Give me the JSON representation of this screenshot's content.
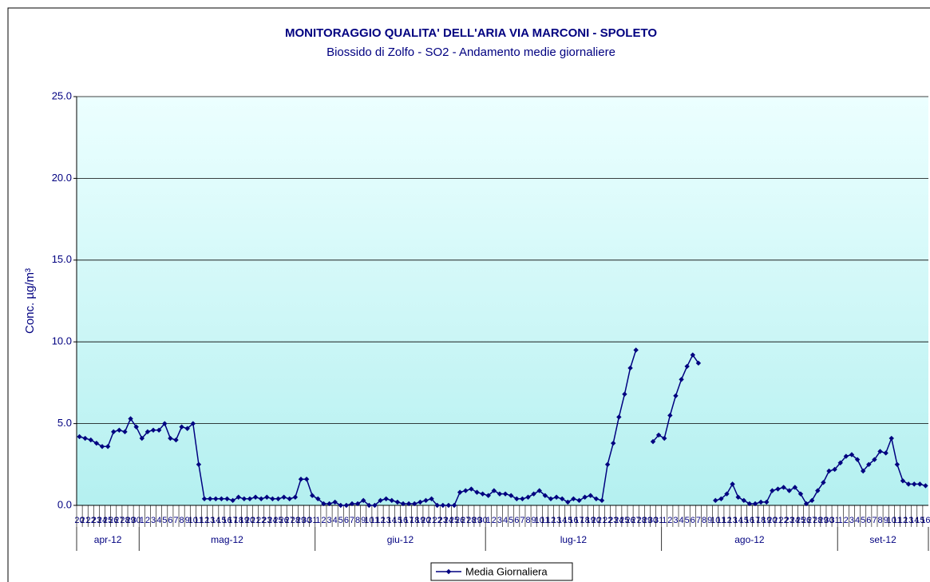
{
  "chart_data": {
    "type": "line",
    "title": "MONITORAGGIO QUALITA' DELL'ARIA  VIA MARCONI - SPOLETO",
    "subtitle": "Biossido di Zolfo - SO2 - Andamento medie giornaliere",
    "y_label": "Conc. µg/m³",
    "categories": [
      20,
      21,
      22,
      23,
      24,
      25,
      26,
      27,
      28,
      29,
      30,
      1,
      2,
      3,
      4,
      5,
      6,
      7,
      8,
      9,
      10,
      11,
      12,
      13,
      14,
      15,
      16,
      17,
      18,
      19,
      20,
      21,
      22,
      23,
      24,
      25,
      26,
      27,
      28,
      29,
      30,
      31,
      1,
      2,
      3,
      4,
      5,
      6,
      7,
      8,
      9,
      10,
      11,
      12,
      13,
      14,
      15,
      16,
      17,
      18,
      19,
      20,
      21,
      22,
      23,
      24,
      25,
      26,
      27,
      28,
      29,
      30,
      1,
      2,
      3,
      4,
      5,
      6,
      7,
      8,
      9,
      10,
      11,
      12,
      13,
      14,
      15,
      16,
      17,
      18,
      19,
      20,
      21,
      22,
      23,
      24,
      25,
      26,
      27,
      28,
      29,
      30,
      31,
      1,
      2,
      3,
      4,
      5,
      6,
      7,
      8,
      9,
      10,
      11,
      12,
      13,
      14,
      15,
      16,
      17,
      18,
      19,
      20,
      21,
      22,
      23,
      24,
      25,
      26,
      27,
      28,
      29,
      30,
      31,
      1,
      2,
      3,
      4,
      5,
      6,
      7,
      8,
      9,
      10,
      11,
      12,
      13,
      14,
      15,
      16
    ],
    "x_groups": [
      "apr-12",
      "mag-12",
      "giu-12",
      "lug-12",
      "ago-12",
      "set-12"
    ],
    "series": [
      {
        "name": "Media Giornaliera",
        "color": "#000080",
        "values": [
          4.2,
          4.1,
          4.0,
          3.8,
          3.6,
          3.6,
          4.5,
          4.6,
          4.5,
          5.3,
          4.8,
          4.1,
          4.5,
          4.6,
          4.6,
          5.0,
          4.1,
          4.0,
          4.8,
          4.7,
          5.0,
          2.5,
          0.4,
          0.4,
          0.4,
          0.4,
          0.4,
          0.3,
          0.5,
          0.4,
          0.4,
          0.5,
          0.4,
          0.5,
          0.4,
          0.4,
          0.5,
          0.4,
          0.5,
          1.6,
          1.6,
          0.6,
          0.4,
          0.1,
          0.1,
          0.2,
          0.0,
          0.0,
          0.1,
          0.1,
          0.3,
          0.0,
          0.0,
          0.3,
          0.4,
          0.3,
          0.2,
          0.1,
          0.1,
          0.1,
          0.2,
          0.3,
          0.4,
          0.0,
          0.0,
          0.0,
          0.0,
          0.8,
          0.9,
          1.0,
          0.8,
          0.7,
          0.6,
          0.9,
          0.7,
          0.7,
          0.6,
          0.4,
          0.4,
          0.5,
          0.7,
          0.9,
          0.6,
          0.4,
          0.5,
          0.4,
          0.2,
          0.4,
          0.3,
          0.5,
          0.6,
          0.4,
          0.3,
          2.5,
          3.8,
          5.4,
          6.8,
          8.4,
          9.5,
          null,
          null,
          3.9,
          4.3,
          4.1,
          5.5,
          6.7,
          7.7,
          8.5,
          9.2,
          8.7,
          null,
          null,
          0.3,
          0.4,
          0.7,
          1.3,
          0.5,
          0.3,
          0.1,
          0.1,
          0.2,
          0.2,
          0.9,
          1.0,
          1.1,
          0.9,
          1.1,
          0.7,
          0.1,
          0.3,
          0.9,
          1.4,
          2.1,
          2.2,
          2.6,
          3.0,
          3.1,
          2.8,
          2.1,
          2.5,
          2.8,
          3.3,
          3.2,
          4.1,
          2.5,
          1.5,
          1.3,
          1.3,
          1.3,
          1.2
        ]
      }
    ],
    "ylim": [
      0,
      25
    ],
    "yticks": [
      {
        "value": 0,
        "label": "0.0"
      },
      {
        "value": 5,
        "label": "5.0"
      },
      {
        "value": 10,
        "label": "10.0"
      },
      {
        "value": 15,
        "label": "15.0"
      },
      {
        "value": 20,
        "label": "20.0"
      },
      {
        "value": 25,
        "label": "25.0"
      }
    ],
    "grid": true,
    "legend": "bottom"
  }
}
